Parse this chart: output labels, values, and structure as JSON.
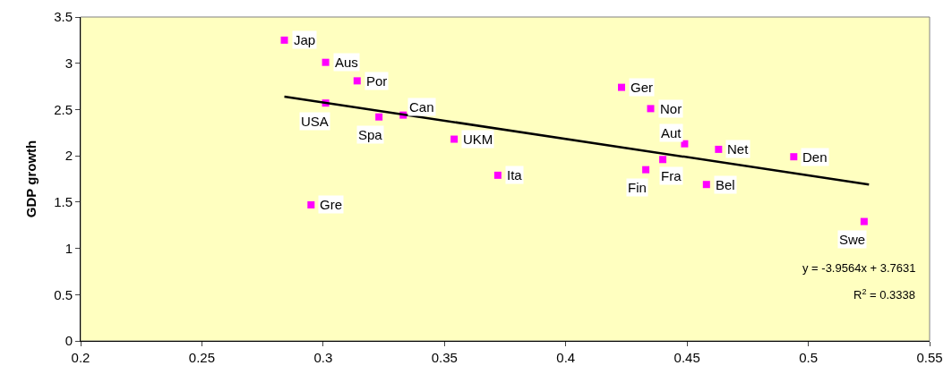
{
  "chart_data": {
    "type": "scatter",
    "ylabel": "GDP growth",
    "xlim": [
      0.2,
      0.55
    ],
    "ylim": [
      0,
      3.5
    ],
    "xticks": [
      0.2,
      0.25,
      0.3,
      0.35,
      0.4,
      0.45,
      0.5,
      0.55
    ],
    "yticks": [
      0,
      0.5,
      1,
      1.5,
      2,
      2.5,
      3,
      3.5
    ],
    "grid": false,
    "legend": false,
    "series": [
      {
        "marker": "square",
        "color": "#ff00ff",
        "x": [
          0.284,
          0.301,
          0.314,
          0.301,
          0.323,
          0.333,
          0.354,
          0.372,
          0.295,
          0.423,
          0.435,
          0.449,
          0.463,
          0.494,
          0.433,
          0.44,
          0.458,
          0.523
        ],
        "values": [
          3.25,
          3.01,
          2.81,
          2.57,
          2.42,
          2.44,
          2.18,
          1.79,
          1.47,
          2.74,
          2.51,
          2.13,
          2.07,
          1.99,
          1.85,
          1.96,
          1.69,
          1.29
        ]
      },
      {
        "type": "line",
        "marker": "none",
        "color": "#000000",
        "x": [
          0.284,
          0.525
        ],
        "values": [
          2.64,
          1.69
        ]
      }
    ],
    "annotations": [
      {
        "text": "Jap",
        "x": 0.284,
        "y": 3.25
      },
      {
        "text": "Aus",
        "x": 0.301,
        "y": 3.01
      },
      {
        "text": "Por",
        "x": 0.314,
        "y": 2.81
      },
      {
        "text": "USA",
        "x": 0.301,
        "y": 2.57
      },
      {
        "text": "Spa",
        "x": 0.323,
        "y": 2.42
      },
      {
        "text": "Can",
        "x": 0.333,
        "y": 2.44
      },
      {
        "text": "UKM",
        "x": 0.354,
        "y": 2.18
      },
      {
        "text": "Ita",
        "x": 0.372,
        "y": 1.79
      },
      {
        "text": "Gre",
        "x": 0.295,
        "y": 1.47
      },
      {
        "text": "Ger",
        "x": 0.423,
        "y": 2.74
      },
      {
        "text": "Nor",
        "x": 0.435,
        "y": 2.51
      },
      {
        "text": "Aut",
        "x": 0.449,
        "y": 2.13
      },
      {
        "text": "Net",
        "x": 0.463,
        "y": 2.07
      },
      {
        "text": "Den",
        "x": 0.494,
        "y": 1.99
      },
      {
        "text": "Fin",
        "x": 0.433,
        "y": 1.85
      },
      {
        "text": "Fra",
        "x": 0.44,
        "y": 1.96
      },
      {
        "text": "Bel",
        "x": 0.458,
        "y": 1.69
      },
      {
        "text": "Swe",
        "x": 0.523,
        "y": 1.29
      },
      "y = -3.9564x + 3.7631",
      "R$^{2}$ = 0.3338"
    ]
  }
}
